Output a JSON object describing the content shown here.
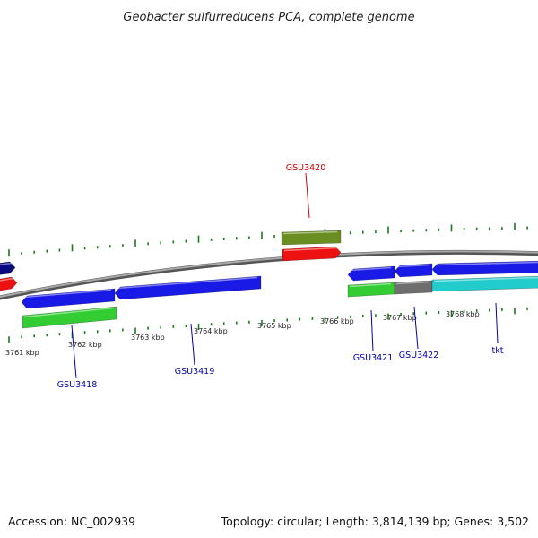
{
  "title": "Geobacter sulfurreducens PCA, complete genome",
  "footer": {
    "accession": "Accession: NC_002939",
    "summary": "Topology: circular; Length: 3,814,139 bp; Genes: 3,502"
  },
  "scale_labels": [
    "3761 kbp",
    "3762 kbp",
    "3763 kbp",
    "3764 kbp",
    "3765 kbp",
    "3766 kbp",
    "3767 kbp",
    "3768 kbp"
  ],
  "gene_labels": [
    {
      "text": "GSU3420",
      "color": "#cc0000"
    },
    {
      "text": "GSU3418",
      "color": "#0000aa"
    },
    {
      "text": "GSU3419",
      "color": "#0000aa"
    },
    {
      "text": "GSU3421",
      "color": "#0000aa"
    },
    {
      "text": "GSU3422",
      "color": "#0000aa"
    },
    {
      "text": "tkt",
      "color": "#0000aa"
    }
  ],
  "colors": {
    "backbone": "#808080",
    "tick": "#1a7a1a",
    "cds_blue": "#1a1ae6",
    "cds_navy": "#0a0a80",
    "cds_red": "#ee1111",
    "cds_green": "#33cc33",
    "cds_olive": "#6b8e23",
    "cds_gray": "#6e6e6e",
    "cds_cyan": "#22cccc"
  }
}
